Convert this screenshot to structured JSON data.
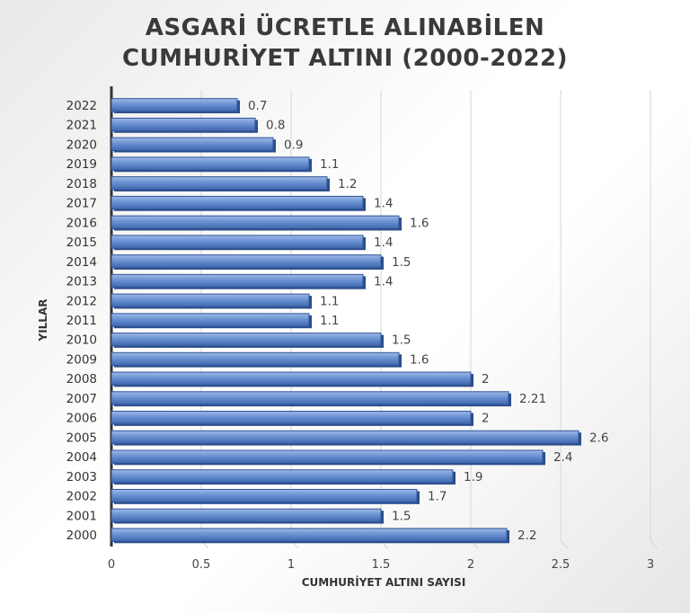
{
  "title_line1": "ASGARİ ÜCRETLE ALINABİLEN",
  "title_line2": "CUMHURİYET ALTINI (2000-2022)",
  "chart_data": {
    "type": "bar",
    "orientation": "horizontal",
    "title": "ASGARİ ÜCRETLE ALINABİLEN CUMHURİYET ALTINI (2000-2022)",
    "xlabel": "CUMHURİYET ALTINI SAYISI",
    "ylabel": "YILLAR",
    "xlim": [
      0,
      3
    ],
    "xticks": [
      "0",
      "0.5",
      "1",
      "1.5",
      "2",
      "2.5",
      "3"
    ],
    "grid": true,
    "bar_color": "#5b84c9",
    "categories": [
      "2000",
      "2001",
      "2002",
      "2003",
      "2004",
      "2005",
      "2006",
      "2007",
      "2008",
      "2009",
      "2010",
      "2011",
      "2012",
      "2013",
      "2014",
      "2015",
      "2016",
      "2017",
      "2018",
      "2019",
      "2020",
      "2021",
      "2022"
    ],
    "values": [
      2.2,
      1.5,
      1.7,
      1.9,
      2.4,
      2.6,
      2,
      2.21,
      2,
      1.6,
      1.5,
      1.1,
      1.1,
      1.4,
      1.5,
      1.4,
      1.6,
      1.4,
      1.2,
      1.1,
      0.9,
      0.8,
      0.7
    ],
    "labels": [
      "2.2",
      "1.5",
      "1.7",
      "1.9",
      "2.4",
      "2.6",
      "2",
      "2.21",
      "2",
      "1.6",
      "1.5",
      "1.1",
      "1.1",
      "1.4",
      "1.5",
      "1.4",
      "1.6",
      "1.4",
      "1.2",
      "1.1",
      "0.9",
      "0.8",
      "0.7"
    ]
  }
}
